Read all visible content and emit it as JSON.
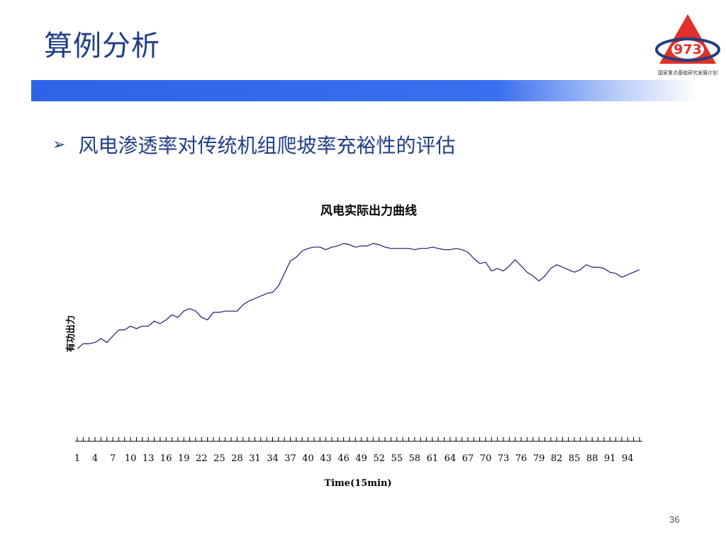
{
  "slide": {
    "title": "算例分析",
    "bullet": "风电渗透率对传统机组爬坡率充裕性的评估",
    "page_number": "36"
  },
  "logo": {
    "number": "973",
    "caption": "国家重点基础研究发展计划",
    "colors": {
      "triangle": "#e0302a",
      "ring": "#1f3f86"
    }
  },
  "colors": {
    "title": "#1f3f86",
    "bar": "#2f63e6",
    "series_line": "#1a1a6e"
  },
  "chart_data": {
    "type": "line",
    "title": "风电实际出力曲线",
    "xlabel": "Time(15min)",
    "ylabel": "有功出力",
    "x_tick_labels": [
      "1",
      "4",
      "7",
      "10",
      "13",
      "16",
      "19",
      "22",
      "25",
      "28",
      "31",
      "34",
      "37",
      "40",
      "43",
      "46",
      "49",
      "52",
      "55",
      "58",
      "61",
      "64",
      "67",
      "70",
      "73",
      "76",
      "79",
      "82",
      "85",
      "88",
      "91",
      "94"
    ],
    "xlim": [
      1,
      96
    ],
    "ylim": [
      0,
      100
    ],
    "grid": false,
    "legend": "none",
    "series": [
      {
        "values": [
          10,
          14,
          14,
          15,
          18,
          15,
          20,
          25,
          25,
          28,
          26,
          28,
          28,
          32,
          30,
          33,
          37,
          35,
          40,
          42,
          40,
          35,
          33,
          39,
          39,
          40,
          40,
          40,
          45,
          48,
          50,
          52,
          54,
          55,
          60,
          70,
          80,
          83,
          88,
          90,
          91,
          91,
          89,
          91,
          92,
          94,
          93,
          91,
          92,
          92,
          94,
          93,
          91,
          90,
          90,
          90,
          90,
          89,
          90,
          90,
          91,
          90,
          89,
          89,
          90,
          89,
          87,
          82,
          78,
          79,
          72,
          74,
          72,
          76,
          81,
          76,
          71,
          68,
          64,
          68,
          74,
          77,
          75,
          73,
          71,
          73,
          77,
          75,
          75,
          74,
          71,
          70,
          67,
          69,
          71,
          73
        ]
      }
    ]
  }
}
